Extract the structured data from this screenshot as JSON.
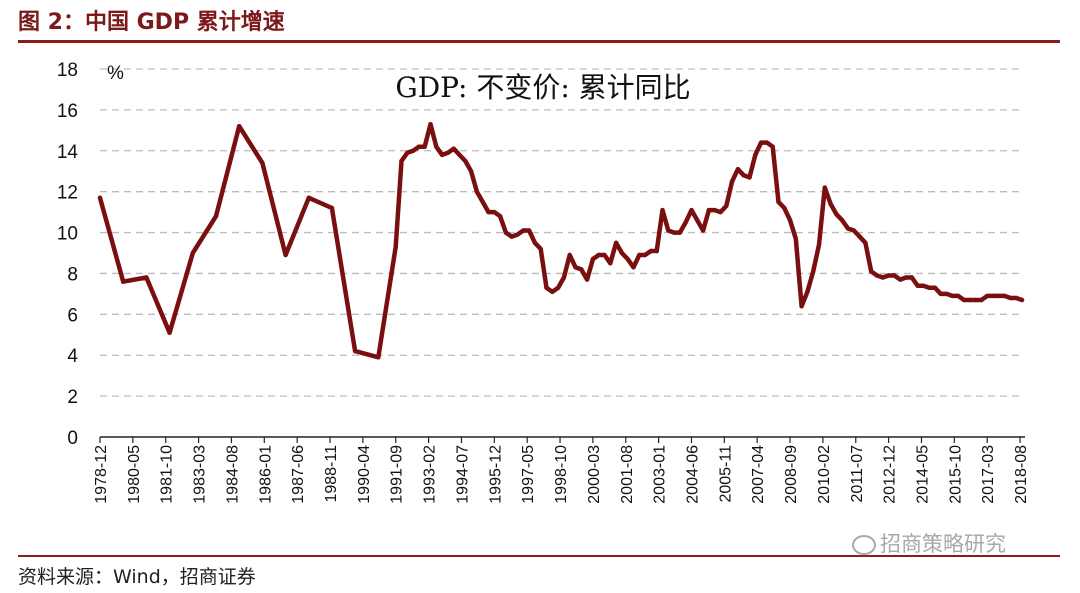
{
  "header": {
    "figure_title": "图 2：中国 GDP 累计增速"
  },
  "footer": {
    "source": "资料来源：Wind，招商证券",
    "watermark": "招商策略研究"
  },
  "chart_data": {
    "type": "line",
    "title": "GDP: 不变价: 累计同比",
    "ylabel": "%",
    "xlabel": "",
    "ylim": [
      0,
      18
    ],
    "yticks": [
      0,
      2,
      4,
      6,
      8,
      10,
      12,
      14,
      16,
      18
    ],
    "grid": true,
    "line_color": "#7a0f0f",
    "x_tick_labels": [
      "1978-12",
      "1980-05",
      "1981-10",
      "1983-03",
      "1984-08",
      "1986-01",
      "1987-06",
      "1988-11",
      "1990-04",
      "1991-09",
      "1993-02",
      "1994-07",
      "1995-12",
      "1997-05",
      "1998-10",
      "2000-03",
      "2001-08",
      "2003-01",
      "2004-06",
      "2005-11",
      "2007-04",
      "2008-09",
      "2010-02",
      "2011-07",
      "2012-12",
      "2014-05",
      "2015-10",
      "2017-03",
      "2018-08"
    ],
    "series": [
      {
        "values": [
          [
            "1978-12",
            11.7
          ],
          [
            "1979-12",
            7.6
          ],
          [
            "1980-12",
            7.8
          ],
          [
            "1981-12",
            5.1
          ],
          [
            "1982-12",
            9.0
          ],
          [
            "1983-12",
            10.8
          ],
          [
            "1984-12",
            15.2
          ],
          [
            "1985-12",
            13.4
          ],
          [
            "1986-12",
            8.9
          ],
          [
            "1987-12",
            11.7
          ],
          [
            "1988-12",
            11.2
          ],
          [
            "1989-12",
            4.2
          ],
          [
            "1990-12",
            3.9
          ],
          [
            "1991-09",
            9.3
          ],
          [
            "1991-12",
            13.5
          ],
          [
            "1992-03",
            13.9
          ],
          [
            "1992-06",
            14.0
          ],
          [
            "1992-09",
            14.2
          ],
          [
            "1992-12",
            14.2
          ],
          [
            "1993-03",
            15.3
          ],
          [
            "1993-06",
            14.2
          ],
          [
            "1993-09",
            13.8
          ],
          [
            "1993-12",
            13.9
          ],
          [
            "1994-03",
            14.1
          ],
          [
            "1994-06",
            13.8
          ],
          [
            "1994-09",
            13.5
          ],
          [
            "1994-12",
            13.0
          ],
          [
            "1995-03",
            12.0
          ],
          [
            "1995-06",
            11.5
          ],
          [
            "1995-09",
            11.0
          ],
          [
            "1995-12",
            11.0
          ],
          [
            "1996-03",
            10.8
          ],
          [
            "1996-06",
            10.0
          ],
          [
            "1996-09",
            9.8
          ],
          [
            "1996-12",
            9.9
          ],
          [
            "1997-03",
            10.1
          ],
          [
            "1997-06",
            10.1
          ],
          [
            "1997-09",
            9.5
          ],
          [
            "1997-12",
            9.2
          ],
          [
            "1998-03",
            7.3
          ],
          [
            "1998-06",
            7.1
          ],
          [
            "1998-09",
            7.3
          ],
          [
            "1998-12",
            7.8
          ],
          [
            "1999-03",
            8.9
          ],
          [
            "1999-06",
            8.3
          ],
          [
            "1999-09",
            8.2
          ],
          [
            "1999-12",
            7.7
          ],
          [
            "2000-03",
            8.7
          ],
          [
            "2000-06",
            8.9
          ],
          [
            "2000-09",
            8.9
          ],
          [
            "2000-12",
            8.5
          ],
          [
            "2001-03",
            9.5
          ],
          [
            "2001-06",
            9.0
          ],
          [
            "2001-09",
            8.7
          ],
          [
            "2001-12",
            8.3
          ],
          [
            "2002-03",
            8.9
          ],
          [
            "2002-06",
            8.9
          ],
          [
            "2002-09",
            9.1
          ],
          [
            "2002-12",
            9.1
          ],
          [
            "2003-03",
            11.1
          ],
          [
            "2003-06",
            10.1
          ],
          [
            "2003-09",
            10.0
          ],
          [
            "2003-12",
            10.0
          ],
          [
            "2004-03",
            10.5
          ],
          [
            "2004-06",
            11.1
          ],
          [
            "2004-09",
            10.6
          ],
          [
            "2004-12",
            10.1
          ],
          [
            "2005-03",
            11.1
          ],
          [
            "2005-06",
            11.1
          ],
          [
            "2005-09",
            11.0
          ],
          [
            "2005-12",
            11.3
          ],
          [
            "2006-03",
            12.5
          ],
          [
            "2006-06",
            13.1
          ],
          [
            "2006-09",
            12.8
          ],
          [
            "2006-12",
            12.7
          ],
          [
            "2007-03",
            13.8
          ],
          [
            "2007-06",
            14.4
          ],
          [
            "2007-09",
            14.4
          ],
          [
            "2007-12",
            14.2
          ],
          [
            "2008-03",
            11.5
          ],
          [
            "2008-06",
            11.2
          ],
          [
            "2008-09",
            10.6
          ],
          [
            "2008-12",
            9.7
          ],
          [
            "2009-03",
            6.4
          ],
          [
            "2009-06",
            7.1
          ],
          [
            "2009-09",
            8.1
          ],
          [
            "2009-12",
            9.4
          ],
          [
            "2010-03",
            12.2
          ],
          [
            "2010-06",
            11.4
          ],
          [
            "2010-09",
            10.9
          ],
          [
            "2010-12",
            10.6
          ],
          [
            "2011-03",
            10.2
          ],
          [
            "2011-06",
            10.1
          ],
          [
            "2011-09",
            9.8
          ],
          [
            "2011-12",
            9.5
          ],
          [
            "2012-03",
            8.1
          ],
          [
            "2012-06",
            7.9
          ],
          [
            "2012-09",
            7.8
          ],
          [
            "2012-12",
            7.9
          ],
          [
            "2013-03",
            7.9
          ],
          [
            "2013-06",
            7.7
          ],
          [
            "2013-09",
            7.8
          ],
          [
            "2013-12",
            7.8
          ],
          [
            "2014-03",
            7.4
          ],
          [
            "2014-06",
            7.4
          ],
          [
            "2014-09",
            7.3
          ],
          [
            "2014-12",
            7.3
          ],
          [
            "2015-03",
            7.0
          ],
          [
            "2015-06",
            7.0
          ],
          [
            "2015-09",
            6.9
          ],
          [
            "2015-12",
            6.9
          ],
          [
            "2016-03",
            6.7
          ],
          [
            "2016-06",
            6.7
          ],
          [
            "2016-09",
            6.7
          ],
          [
            "2016-12",
            6.7
          ],
          [
            "2017-03",
            6.9
          ],
          [
            "2017-06",
            6.9
          ],
          [
            "2017-09",
            6.9
          ],
          [
            "2017-12",
            6.9
          ],
          [
            "2018-03",
            6.8
          ],
          [
            "2018-06",
            6.8
          ],
          [
            "2018-09",
            6.7
          ]
        ]
      }
    ]
  }
}
